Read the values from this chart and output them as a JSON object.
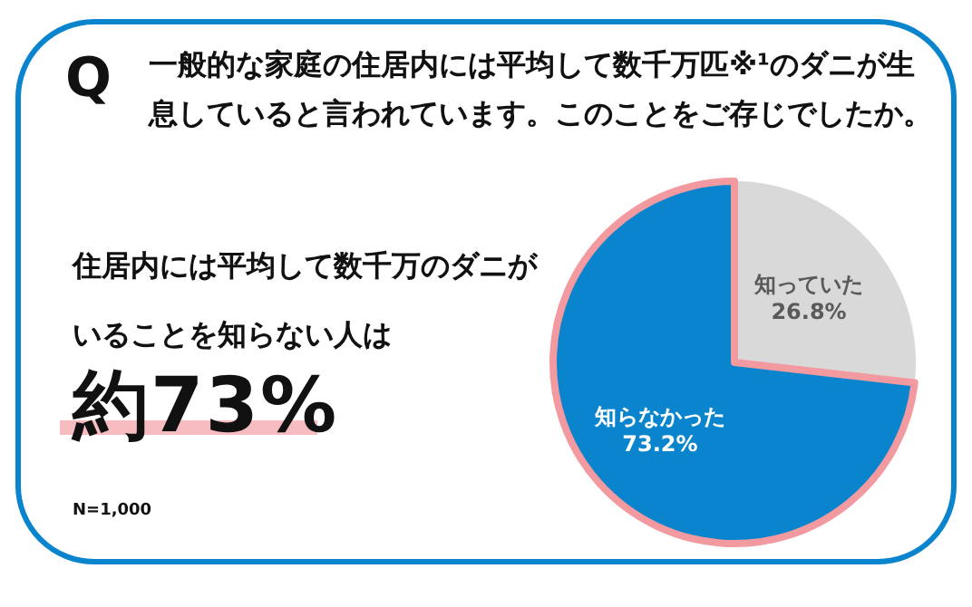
{
  "chart_data": {
    "type": "pie",
    "title": "一般的な家庭の住居内には平均して数千万匹※¹のダニが生息していると言われています。このことをご存じでしたか。",
    "subtitle": "住居内には平均して数千万のダニがいることを知らない人は",
    "annotations": [
      "Q",
      "約73%",
      "N=1,000"
    ],
    "categories": [
      "知っていた",
      "知らなかった"
    ],
    "values": [
      26.8,
      73.2
    ],
    "colors": [
      "#d9d9d9",
      "#0a84cc"
    ],
    "value_labels": [
      "26.8%",
      "73.2%"
    ]
  }
}
